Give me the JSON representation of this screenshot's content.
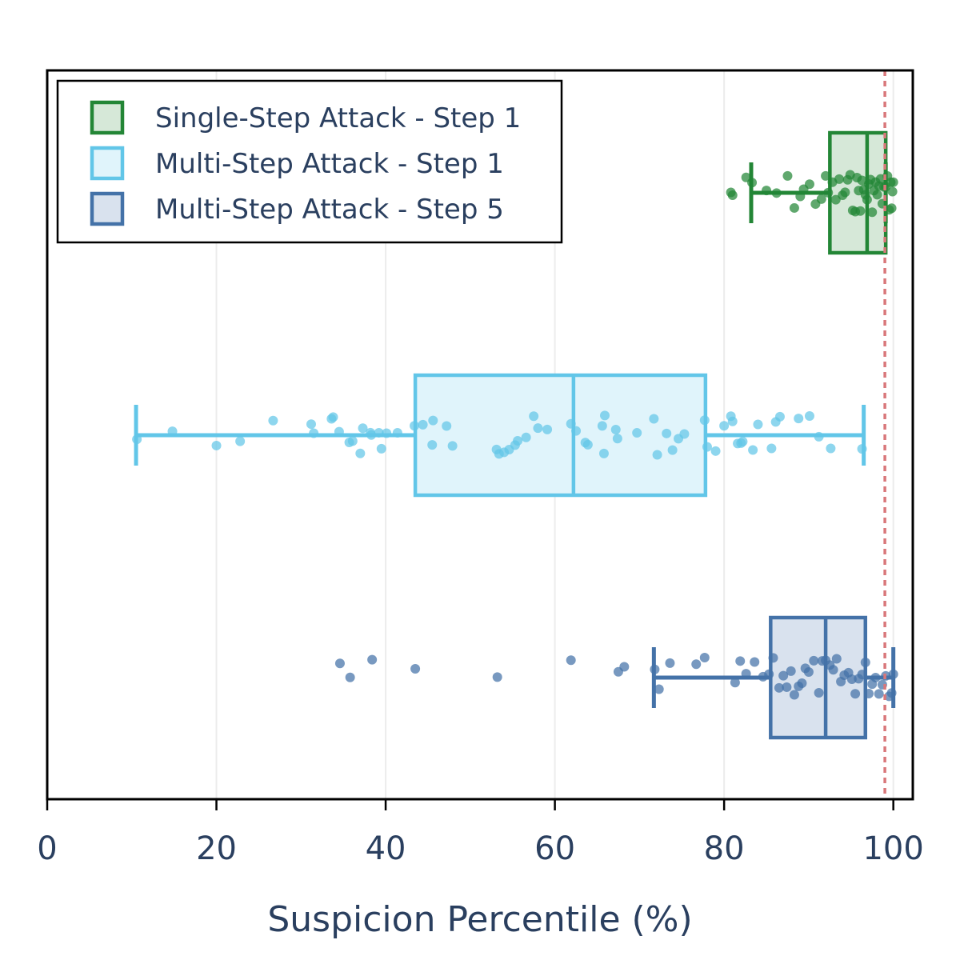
{
  "chart_data": {
    "type": "box",
    "orientation": "horizontal",
    "xlabel": "Suspicion Percentile (%)",
    "ylabel": "",
    "xlim": [
      0,
      102.3
    ],
    "xticks": [
      0,
      20,
      40,
      60,
      80,
      100
    ],
    "xtick_labels": [
      "0",
      "20",
      "40",
      "60",
      "80",
      "100"
    ],
    "grid": "vertical",
    "reference_line": {
      "x": 99,
      "style": "dotted",
      "color": "#d9777a"
    },
    "legend": {
      "placement": "top-left"
    },
    "series": [
      {
        "name": "Single-Step Attack - Step 1",
        "color": "#238636",
        "fill": "#d6e8d8",
        "stats": {
          "whisker_low": 83.2,
          "q1": 92.5,
          "median": 96.9,
          "q3": 99.1,
          "whisker_high": 99.1
        },
        "points": [
          80.8,
          81.0,
          82.6,
          83.3,
          85.0,
          86.2,
          87.5,
          88.3,
          89.0,
          89.4,
          90.1,
          90.8,
          91.5,
          92.0,
          92.3,
          92.8,
          93.2,
          93.6,
          94.0,
          94.3,
          94.6,
          94.9,
          95.2,
          95.5,
          95.7,
          95.9,
          96.1,
          96.3,
          96.5,
          96.7,
          96.9,
          97.1,
          97.3,
          97.5,
          97.7,
          97.9,
          98.1,
          98.3,
          98.5,
          98.7,
          98.9,
          99.1,
          99.3,
          99.5,
          99.7,
          99.8,
          99.9,
          100.0
        ]
      },
      {
        "name": "Multi-Step Attack - Step 1",
        "color": "#62c6e8",
        "fill": "#e0f4fb",
        "stats": {
          "whisker_low": 10.5,
          "q1": 43.5,
          "median": 62.2,
          "q3": 77.8,
          "whisker_high": 96.5
        },
        "points": [
          10.6,
          14.8,
          20.0,
          22.8,
          26.7,
          31.2,
          31.5,
          33.6,
          33.8,
          34.5,
          35.7,
          36.1,
          37.0,
          37.3,
          38.2,
          38.3,
          39.2,
          39.5,
          40.1,
          41.4,
          43.4,
          44.4,
          45.5,
          45.6,
          47.2,
          47.9,
          53.1,
          53.4,
          54.0,
          54.6,
          55.3,
          55.6,
          56.6,
          57.5,
          58.0,
          59.1,
          61.9,
          62.5,
          63.6,
          63.9,
          65.6,
          65.8,
          65.9,
          67.2,
          67.4,
          69.7,
          71.7,
          72.1,
          73.2,
          73.9,
          74.6,
          75.3,
          77.7,
          78.0,
          79.0,
          80.0,
          80.8,
          81.0,
          81.6,
          82.0,
          82.2,
          83.4,
          84.0,
          85.6,
          86.1,
          86.6,
          88.8,
          90.1,
          91.2,
          92.6,
          96.3
        ]
      },
      {
        "name": "Multi-Step Attack - Step 5",
        "color": "#4472a8",
        "fill": "#d9e2ee",
        "stats": {
          "whisker_low": 71.7,
          "q1": 85.5,
          "median": 92.0,
          "q3": 96.7,
          "whisker_high": 100.0
        },
        "points": [
          34.6,
          35.8,
          38.4,
          43.5,
          53.2,
          61.9,
          67.5,
          68.2,
          71.8,
          72.3,
          73.6,
          76.7,
          77.7,
          81.3,
          81.9,
          82.6,
          83.6,
          84.6,
          85.3,
          85.8,
          86.5,
          87.0,
          87.4,
          87.9,
          88.3,
          88.8,
          89.2,
          89.6,
          90.0,
          90.6,
          91.2,
          91.6,
          92.0,
          92.5,
          92.9,
          93.3,
          93.8,
          94.2,
          94.7,
          95.1,
          95.5,
          95.9,
          96.3,
          96.7,
          97.1,
          97.5,
          97.9,
          98.3,
          98.7,
          99.1,
          99.5,
          99.8,
          100.0
        ]
      }
    ]
  }
}
